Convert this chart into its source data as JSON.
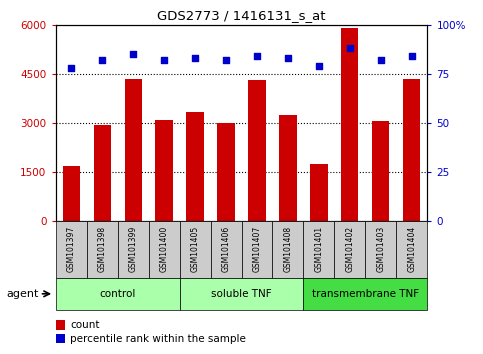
{
  "title": "GDS2773 / 1416131_s_at",
  "samples": [
    "GSM101397",
    "GSM101398",
    "GSM101399",
    "GSM101400",
    "GSM101405",
    "GSM101406",
    "GSM101407",
    "GSM101408",
    "GSM101401",
    "GSM101402",
    "GSM101403",
    "GSM101404"
  ],
  "counts": [
    1700,
    2950,
    4350,
    3100,
    3350,
    3000,
    4300,
    3250,
    1750,
    5900,
    3050,
    4350
  ],
  "percentiles": [
    78,
    82,
    85,
    82,
    83,
    82,
    84,
    83,
    79,
    88,
    82,
    84
  ],
  "bar_color": "#cc0000",
  "dot_color": "#0000cc",
  "ylim_left": [
    0,
    6000
  ],
  "ylim_right": [
    0,
    100
  ],
  "yticks_left": [
    0,
    1500,
    3000,
    4500,
    6000
  ],
  "yticks_right": [
    0,
    25,
    50,
    75,
    100
  ],
  "groups": [
    {
      "label": "control",
      "start": 0,
      "end": 4,
      "color": "#aaffaa"
    },
    {
      "label": "soluble TNF",
      "start": 4,
      "end": 8,
      "color": "#aaffaa"
    },
    {
      "label": "transmembrane TNF",
      "start": 8,
      "end": 12,
      "color": "#44dd44"
    }
  ],
  "agent_label": "agent",
  "legend_count": "count",
  "legend_percentile": "percentile rank within the sample",
  "sample_bg": "#cccccc",
  "border_color": "#000000"
}
